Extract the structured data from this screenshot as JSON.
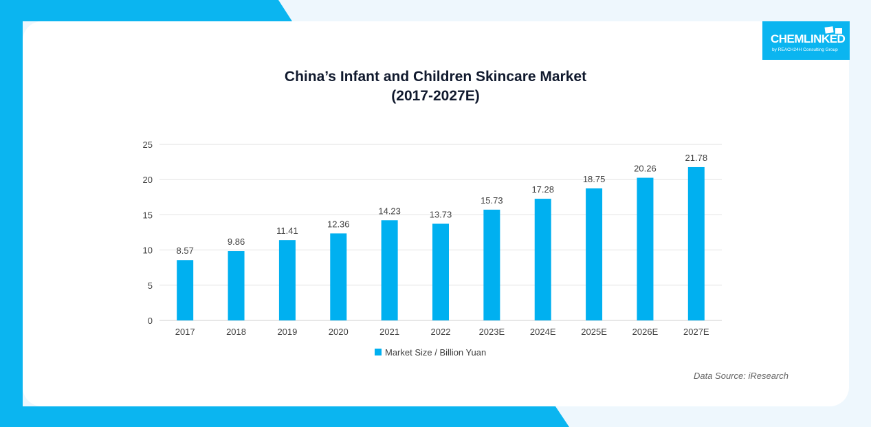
{
  "colors": {
    "accent": "#0bb5f0",
    "bar": "#00b0f0",
    "text": "#111a2e",
    "axis_text": "#404040",
    "grid": "#e2e2e2"
  },
  "logo": {
    "word": "CHEMLINKED",
    "sub": "by REACH24H Consulting Group"
  },
  "chart_data": {
    "type": "bar",
    "title": "China’s Infant and Children Skincare Market",
    "subtitle": "(2017-2027E)",
    "categories": [
      "2017",
      "2018",
      "2019",
      "2020",
      "2021",
      "2022",
      "2023E",
      "2024E",
      "2025E",
      "2026E",
      "2027E"
    ],
    "series": [
      {
        "name": "Market Size / Billion Yuan",
        "values": [
          8.57,
          9.86,
          11.41,
          12.36,
          14.23,
          13.73,
          15.73,
          17.28,
          18.75,
          20.26,
          21.78
        ],
        "labels": [
          "8.57",
          "9.86",
          "11.41",
          "12.36",
          "14.23",
          "13.73",
          "15.73",
          "17.28",
          "18.75",
          "20.26",
          "21.78"
        ],
        "color": "#00b0f0"
      }
    ],
    "ylim": [
      0,
      25
    ],
    "yticks": [
      "0",
      "5",
      "10",
      "15",
      "20",
      "25"
    ],
    "xlabel": "",
    "ylabel": "",
    "grid": true,
    "legend": "bottom"
  },
  "source": "Data Source: iResearch"
}
